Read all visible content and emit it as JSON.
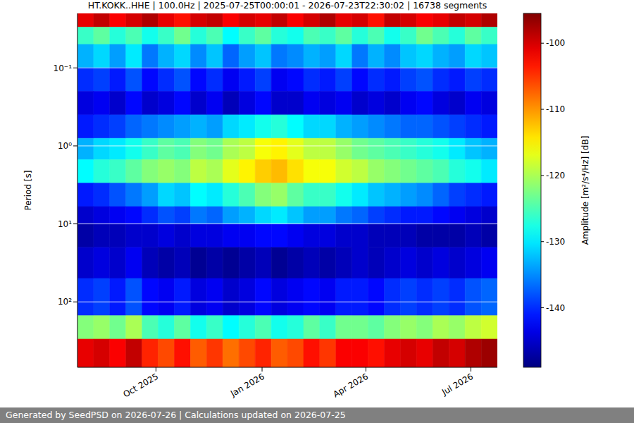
{
  "chart_data": {
    "type": "heatmap",
    "title": "HT.KOKK..HHE | 100.0Hz | 2025-07-25T00:00:01 - 2026-07-23T22:30:02 | 16738 segments",
    "y_label": "Period [s]",
    "footer": "Generated by SeedPSD on 2026-07-26 | Calculations updated on 2026-07-25",
    "log": "y",
    "grid": true,
    "xlim": [
      "2025-07-25T00:00:01",
      "2026-07-23T22:30:02"
    ],
    "xticks": [
      {
        "value": "2025-10-01",
        "label": "Oct 2025"
      },
      {
        "value": "2026-01-01",
        "label": "Jan 2026"
      },
      {
        "value": "2026-04-01",
        "label": "Apr 2026"
      },
      {
        "value": "2026-07-01",
        "label": "Jul 2026"
      }
    ],
    "ylim": [
      0.02,
      690
    ],
    "yticks": [
      {
        "value": 0.1,
        "label": "10⁻¹"
      },
      {
        "value": 1,
        "label": "10⁰"
      },
      {
        "value": 10,
        "label": "10¹"
      },
      {
        "value": 100,
        "label": "10²"
      }
    ],
    "colorbar": {
      "label": "Amplitude [m²/s⁴/Hz] [dB]",
      "range": [
        -149,
        -95.5
      ],
      "ticks": [
        -100,
        -110,
        -120,
        -130,
        -140
      ]
    },
    "x_edges": [
      "2025-07-25T00:00:01",
      "2025-08-08",
      "2025-08-22",
      "2025-09-05",
      "2025-09-19",
      "2025-10-03",
      "2025-10-17",
      "2025-10-31",
      "2025-11-14",
      "2025-11-28",
      "2025-12-12",
      "2025-12-26",
      "2026-01-09",
      "2026-01-23",
      "2026-02-06",
      "2026-02-20",
      "2026-03-06",
      "2026-03-20",
      "2026-04-03",
      "2026-04-17",
      "2026-05-01",
      "2026-05-15",
      "2026-05-29",
      "2026-06-12",
      "2026-06-26",
      "2026-07-10",
      "2026-07-23T22:30:02"
    ],
    "y_edges": [
      0.02,
      0.03,
      0.05,
      0.1,
      0.2,
      0.4,
      0.8,
      1.5,
      3,
      6,
      10,
      20,
      50,
      150,
      300,
      690
    ],
    "cells": [
      [
        -101,
        -99,
        -102,
        -100,
        -98,
        -101,
        -103,
        -100,
        -99,
        -102,
        -100,
        -101,
        -99,
        -102,
        -100,
        -98,
        -101,
        -100,
        -103,
        -99,
        -100,
        -102,
        -101,
        -99,
        -100,
        -98
      ],
      [
        -126,
        -124,
        -127,
        -125,
        -128,
        -126,
        -123,
        -127,
        -125,
        -129,
        -126,
        -124,
        -127,
        -128,
        -125,
        -126,
        -124,
        -127,
        -125,
        -128,
        -126,
        -123,
        -125,
        -127,
        -124,
        -126
      ],
      [
        -133,
        -131,
        -134,
        -130,
        -136,
        -133,
        -131,
        -135,
        -132,
        -137,
        -134,
        -132,
        -136,
        -135,
        -133,
        -134,
        -131,
        -136,
        -133,
        -135,
        -132,
        -131,
        -133,
        -134,
        -131,
        -132
      ],
      [
        -140,
        -139,
        -141,
        -138,
        -142,
        -140,
        -138,
        -142,
        -140,
        -143,
        -141,
        -139,
        -143,
        -142,
        -140,
        -141,
        -139,
        -142,
        -140,
        -141,
        -139,
        -138,
        -140,
        -141,
        -139,
        -140
      ],
      [
        -144,
        -143,
        -145,
        -142,
        -145,
        -144,
        -142,
        -145,
        -143,
        -146,
        -144,
        -142,
        -145,
        -145,
        -143,
        -144,
        -143,
        -145,
        -144,
        -145,
        -143,
        -142,
        -144,
        -145,
        -143,
        -144
      ],
      [
        -141,
        -140,
        -139,
        -137,
        -136,
        -135,
        -134,
        -133,
        -134,
        -131,
        -130,
        -128,
        -127,
        -129,
        -131,
        -131,
        -133,
        -134,
        -135,
        -136,
        -137,
        -137,
        -138,
        -139,
        -140,
        -141
      ],
      [
        -133,
        -131,
        -130,
        -128,
        -126,
        -124,
        -125,
        -122,
        -123,
        -120,
        -119,
        -116,
        -115,
        -117,
        -119,
        -119,
        -121,
        -123,
        -124,
        -125,
        -126,
        -127,
        -128,
        -130,
        -132,
        -133
      ],
      [
        -129,
        -127,
        -126,
        -124,
        -122,
        -121,
        -122,
        -119,
        -120,
        -117,
        -115,
        -113,
        -112,
        -114,
        -116,
        -116,
        -118,
        -119,
        -121,
        -122,
        -123,
        -124,
        -125,
        -127,
        -128,
        -130
      ],
      [
        -141,
        -140,
        -138,
        -136,
        -134,
        -131,
        -132,
        -129,
        -130,
        -127,
        -125,
        -122,
        -121,
        -124,
        -126,
        -126,
        -128,
        -130,
        -132,
        -133,
        -134,
        -135,
        -137,
        -139,
        -140,
        -141
      ],
      [
        -145,
        -144,
        -143,
        -142,
        -140,
        -138,
        -139,
        -136,
        -137,
        -134,
        -133,
        -131,
        -130,
        -132,
        -134,
        -134,
        -136,
        -137,
        -139,
        -140,
        -141,
        -141,
        -142,
        -143,
        -144,
        -145
      ],
      [
        -147,
        -146,
        -146,
        -145,
        -145,
        -144,
        -145,
        -144,
        -144,
        -143,
        -143,
        -142,
        -142,
        -143,
        -144,
        -144,
        -145,
        -145,
        -146,
        -146,
        -146,
        -147,
        -147,
        -147,
        -146,
        -147
      ],
      [
        -145,
        -144,
        -145,
        -143,
        -146,
        -147,
        -146,
        -148,
        -147,
        -148,
        -147,
        -146,
        -148,
        -147,
        -146,
        -147,
        -146,
        -145,
        -146,
        -145,
        -144,
        -145,
        -144,
        -145,
        -144,
        -143
      ],
      [
        -140,
        -139,
        -141,
        -138,
        -142,
        -143,
        -141,
        -144,
        -143,
        -145,
        -144,
        -142,
        -144,
        -143,
        -142,
        -143,
        -141,
        -141,
        -142,
        -140,
        -139,
        -140,
        -139,
        -140,
        -138,
        -137
      ],
      [
        -122,
        -121,
        -123,
        -120,
        -125,
        -127,
        -124,
        -128,
        -126,
        -129,
        -127,
        -125,
        -128,
        -127,
        -124,
        -126,
        -123,
        -123,
        -124,
        -122,
        -121,
        -122,
        -120,
        -121,
        -119,
        -118
      ],
      [
        -101,
        -100,
        -102,
        -99,
        -104,
        -106,
        -103,
        -107,
        -105,
        -108,
        -106,
        -104,
        -107,
        -106,
        -103,
        -105,
        -102,
        -102,
        -103,
        -101,
        -100,
        -101,
        -99,
        -100,
        -98,
        -97
      ]
    ]
  }
}
